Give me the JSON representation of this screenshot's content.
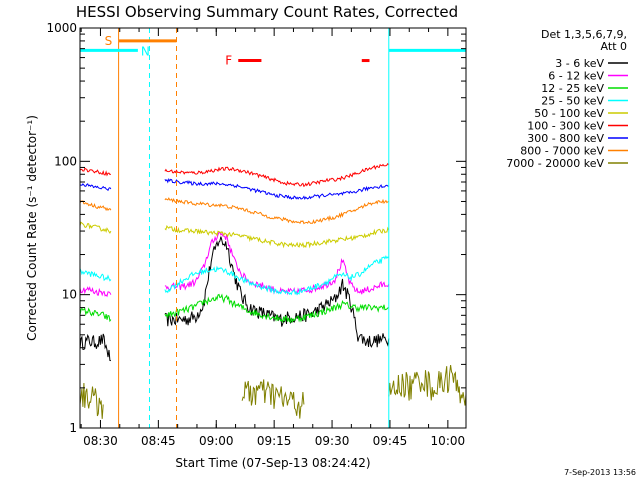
{
  "chart_data": {
    "type": "line",
    "title": "HESSI Observing Summary Count Rates, Corrected",
    "xlabel": "Start Time (07-Sep-13 08:24:42)",
    "ylabel": "Corrected Count Rate (s⁻¹ detector⁻¹)",
    "yscale": "log",
    "ylim": [
      1,
      1000
    ],
    "xlim_minutes_after_start": [
      0,
      100
    ],
    "x_ticks": [
      "08:30",
      "08:45",
      "09:00",
      "09:15",
      "09:30",
      "09:45",
      "10:00"
    ],
    "y_ticks": [
      "1",
      "10",
      "100",
      "1000"
    ],
    "legend": {
      "position": "right",
      "header_line1": "Det 1,3,5,6,7,9,",
      "header_line2": "Att 0",
      "entries": [
        {
          "label": "3 - 6 keV",
          "color": "#000000"
        },
        {
          "label": "6 - 12 keV",
          "color": "#ff00ff"
        },
        {
          "label": "12 - 25 keV",
          "color": "#00dd00"
        },
        {
          "label": "25 - 50 keV",
          "color": "#00ffff"
        },
        {
          "label": "50 - 100 keV",
          "color": "#cccc00"
        },
        {
          "label": "100 - 300 keV",
          "color": "#ff0000"
        },
        {
          "label": "300 - 800 keV",
          "color": "#0000ff"
        },
        {
          "label": "800 - 7000 keV",
          "color": "#ff8000"
        },
        {
          "label": "7000 - 20000 keV",
          "color": "#808000"
        }
      ]
    },
    "series": [
      {
        "name": "3 - 6 keV",
        "color": "#000000",
        "noise": 0.12,
        "segments": [
          {
            "x": [
              0,
              2,
              4,
              6,
              8
            ],
            "y": [
              4.3,
              4.5,
              4.4,
              4.6,
              3.2
            ]
          },
          {
            "x": [
              22,
              24,
              26,
              28,
              30,
              32,
              34,
              36,
              38,
              40,
              42,
              44,
              46,
              48,
              50,
              52,
              54,
              56,
              58,
              60,
              62,
              64,
              66,
              68,
              70,
              72,
              74,
              76,
              78,
              80
            ],
            "y": [
              6.5,
              6.5,
              6.5,
              6.6,
              6.9,
              8.5,
              18,
              26,
              24,
              14,
              9.5,
              8.0,
              7.5,
              7.2,
              6.8,
              6.5,
              6.8,
              6.9,
              7.0,
              7.2,
              7.8,
              8.5,
              9.2,
              12,
              9.0,
              5.0,
              4.5,
              4.5,
              4.6,
              4.7
            ]
          }
        ]
      },
      {
        "name": "6 - 12 keV",
        "color": "#ff00ff",
        "noise": 0.06,
        "segments": [
          {
            "x": [
              0,
              2,
              4,
              6,
              8
            ],
            "y": [
              11,
              11,
              10.5,
              10.5,
              10
            ]
          },
          {
            "x": [
              22,
              24,
              26,
              28,
              30,
              32,
              34,
              36,
              38,
              40,
              42,
              44,
              46,
              48,
              50,
              52,
              54,
              56,
              58,
              60,
              62,
              64,
              66,
              68,
              70,
              72,
              74,
              76,
              78,
              80
            ],
            "y": [
              11.5,
              11.5,
              11.5,
              11.8,
              12.5,
              16,
              24,
              29,
              27,
              18,
              14,
              12.5,
              12,
              11.5,
              11,
              10.5,
              10.5,
              10.5,
              10.8,
              11,
              11.5,
              12,
              13,
              18,
              12,
              10.5,
              10.8,
              11.2,
              11.8,
              12
            ]
          }
        ]
      },
      {
        "name": "12 - 25 keV",
        "color": "#00dd00",
        "noise": 0.06,
        "segments": [
          {
            "x": [
              0,
              2,
              4,
              6,
              8
            ],
            "y": [
              7.5,
              7.5,
              7.2,
              7.0,
              6.5
            ]
          },
          {
            "x": [
              22,
              24,
              26,
              28,
              30,
              32,
              34,
              36,
              38,
              40,
              42,
              44,
              46,
              48,
              50,
              52,
              54,
              56,
              58,
              60,
              62,
              64,
              66,
              68,
              70,
              72,
              74,
              76,
              78,
              80
            ],
            "y": [
              7.0,
              7.2,
              7.5,
              7.8,
              8.2,
              8.8,
              9.2,
              9.5,
              9.3,
              8.5,
              8.0,
              7.5,
              7.2,
              7.0,
              6.8,
              6.6,
              6.5,
              6.6,
              6.8,
              7.0,
              7.3,
              7.6,
              8.0,
              8.5,
              8.2,
              8.0,
              8.0,
              8.0,
              8.0,
              8.0
            ]
          }
        ]
      },
      {
        "name": "25 - 50 keV",
        "color": "#00ffff",
        "noise": 0.05,
        "segments": [
          {
            "x": [
              0,
              2,
              4,
              6,
              8
            ],
            "y": [
              15,
              14.5,
              14,
              13.5,
              13
            ]
          },
          {
            "x": [
              22,
              24,
              26,
              28,
              30,
              32,
              34,
              36,
              38,
              40,
              42,
              44,
              46,
              48,
              50,
              52,
              54,
              56,
              58,
              60,
              62,
              64,
              66,
              68,
              70,
              72,
              74,
              76,
              78,
              80
            ],
            "y": [
              10.5,
              11.5,
              12.5,
              13.5,
              14.5,
              15,
              15.5,
              15.5,
              15,
              14,
              13,
              12.2,
              11.8,
              11.2,
              10.8,
              10.5,
              10.3,
              10.5,
              10.8,
              11.2,
              11.8,
              12.5,
              13.5,
              14,
              13.5,
              14,
              15.5,
              17,
              18,
              19
            ]
          }
        ]
      },
      {
        "name": "50 - 100 keV",
        "color": "#cccc00",
        "noise": 0.04,
        "segments": [
          {
            "x": [
              0,
              2,
              4,
              6,
              8
            ],
            "y": [
              34,
              33,
              32,
              31,
              30
            ]
          },
          {
            "x": [
              22,
              24,
              26,
              28,
              30,
              32,
              34,
              36,
              38,
              40,
              42,
              44,
              46,
              48,
              50,
              52,
              54,
              56,
              58,
              60,
              62,
              64,
              66,
              68,
              70,
              72,
              74,
              76,
              78,
              80
            ],
            "y": [
              32,
              31,
              30.5,
              30,
              30,
              29.5,
              29,
              29,
              28.5,
              28,
              27.5,
              26.5,
              26,
              25,
              24.5,
              24,
              23.5,
              23.5,
              23.5,
              24,
              24.5,
              25,
              25.5,
              26,
              26.5,
              27,
              28,
              29,
              30,
              30.5
            ]
          }
        ]
      },
      {
        "name": "100 - 300 keV",
        "color": "#ff0000",
        "noise": 0.03,
        "segments": [
          {
            "x": [
              0,
              2,
              4,
              6,
              8
            ],
            "y": [
              88,
              86,
              84,
              82,
              80
            ]
          },
          {
            "x": [
              22,
              24,
              26,
              28,
              30,
              32,
              34,
              36,
              38,
              40,
              42,
              44,
              46,
              48,
              50,
              52,
              54,
              56,
              58,
              60,
              62,
              64,
              66,
              68,
              70,
              72,
              74,
              76,
              78,
              80
            ],
            "y": [
              85,
              84,
              83,
              82,
              82,
              83,
              85,
              87,
              88,
              87,
              85,
              82,
              79,
              76,
              73,
              70,
              68,
              67,
              67,
              68,
              70,
              72,
              73,
              75,
              78,
              82,
              86,
              90,
              93,
              94
            ]
          }
        ]
      },
      {
        "name": "300 - 800 keV",
        "color": "#0000ff",
        "noise": 0.03,
        "segments": [
          {
            "x": [
              0,
              2,
              4,
              6,
              8
            ],
            "y": [
              68,
              66,
              64,
              63,
              62
            ]
          },
          {
            "x": [
              22,
              24,
              26,
              28,
              30,
              32,
              34,
              36,
              38,
              40,
              42,
              44,
              46,
              48,
              50,
              52,
              54,
              56,
              58,
              60,
              62,
              64,
              66,
              68,
              70,
              72,
              74,
              76,
              78,
              80
            ],
            "y": [
              72,
              71,
              70,
              69,
              68,
              68,
              68,
              68,
              67,
              66,
              64,
              62,
              60,
              58,
              56,
              55,
              54,
              53,
              53,
              54,
              55,
              56,
              56,
              57,
              58,
              60,
              62,
              64,
              65,
              65
            ]
          }
        ]
      },
      {
        "name": "800 - 7000 keV",
        "color": "#ff8000",
        "noise": 0.03,
        "segments": [
          {
            "x": [
              0,
              2,
              4,
              6,
              8
            ],
            "y": [
              50,
              48,
              46,
              45,
              43
            ]
          },
          {
            "x": [
              22,
              24,
              26,
              28,
              30,
              32,
              34,
              36,
              38,
              40,
              42,
              44,
              46,
              48,
              50,
              52,
              54,
              56,
              58,
              60,
              62,
              64,
              66,
              68,
              70,
              72,
              74,
              76,
              78,
              80
            ],
            "y": [
              52,
              51,
              50,
              49,
              48,
              48,
              47,
              47,
              46,
              45,
              44,
              42,
              41,
              39,
              38,
              37,
              36,
              35,
              35,
              35,
              36,
              37,
              38,
              40,
              42,
              44,
              47,
              49,
              50,
              50
            ]
          }
        ]
      },
      {
        "name": "7000 - 20000 keV",
        "color": "#808000",
        "noise": 0.25,
        "segments": [
          {
            "x": [
              0,
              2,
              4,
              6
            ],
            "y": [
              1.8,
              1.8,
              1.6,
              1.5
            ]
          },
          {
            "x": [
              42,
              46,
              50,
              54,
              58
            ],
            "y": [
              1.8,
              1.9,
              1.8,
              1.6,
              1.5
            ]
          },
          {
            "x": [
              80,
              82,
              84,
              86,
              88,
              90,
              92,
              94,
              96,
              98,
              100
            ],
            "y": [
              1.8,
              2.0,
              2.2,
              2.0,
              2.5,
              2.2,
              2.0,
              2.3,
              2.5,
              2.0,
              1.8
            ]
          }
        ]
      }
    ],
    "attenuator_s": {
      "label": "S",
      "start": 10,
      "end": 25,
      "y": 800,
      "color": "#ff8000"
    },
    "night_n": {
      "label": "N",
      "start": 0,
      "end": 15,
      "y": 680,
      "color": "#00ffff"
    },
    "night_n_end": {
      "start": 80,
      "end": 100,
      "y": 680
    },
    "flare_f": {
      "label": "F",
      "segments": [
        {
          "start": 41,
          "end": 47
        },
        {
          "start": 73,
          "end": 75
        }
      ],
      "y": 570,
      "color": "#ff0000"
    },
    "vlines": [
      {
        "x": 10,
        "color": "#ff8000",
        "dash": false
      },
      {
        "x": 18,
        "color": "#00ffff",
        "dash": true
      },
      {
        "x": 25,
        "color": "#ff8000",
        "dash": true
      },
      {
        "x": 80,
        "color": "#00ffff",
        "dash": false
      },
      {
        "x": 100,
        "color": "#00ffff",
        "dash": true
      }
    ],
    "timestamp": "7-Sep-2013 13:56"
  }
}
